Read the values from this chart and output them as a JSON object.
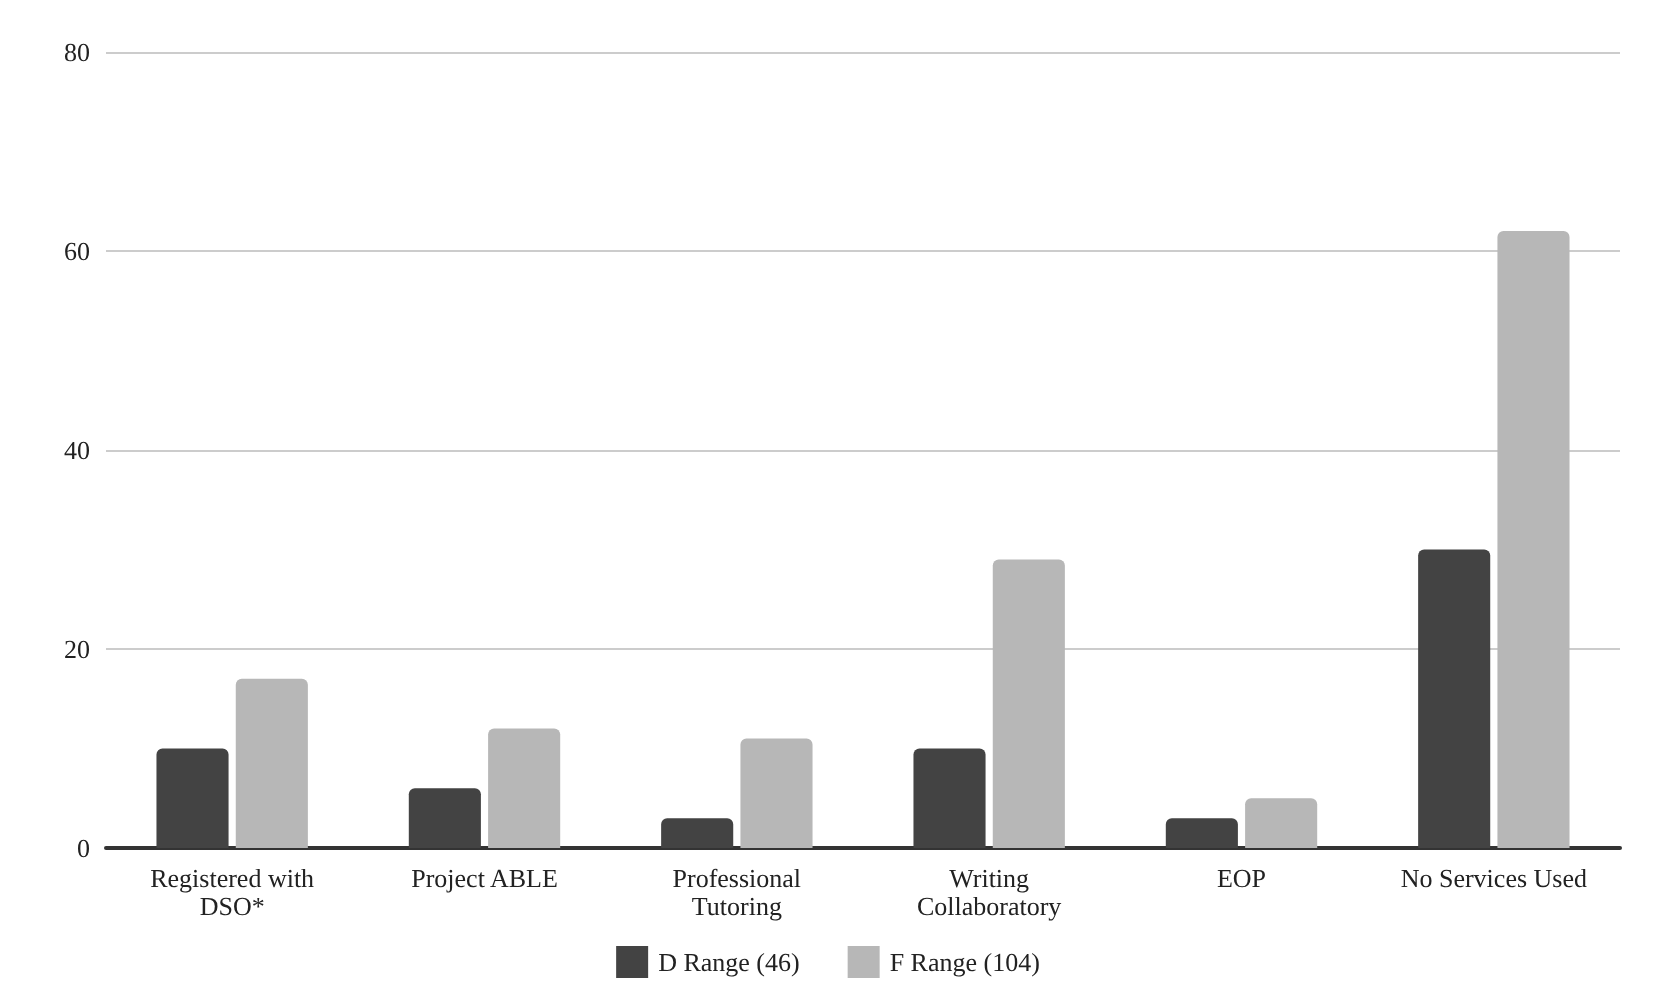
{
  "chart_data": {
    "type": "bar",
    "categories": [
      "Registered with\nDSO*",
      "Project ABLE",
      "Professional\nTutoring",
      "Writing\nCollaboratory",
      "EOP",
      "No Services Used"
    ],
    "series": [
      {
        "name": "D Range (46)",
        "color": "#434343",
        "values": [
          10,
          6,
          3,
          10,
          3,
          30
        ]
      },
      {
        "name": "F Range (104)",
        "color": "#b7b7b7",
        "values": [
          17,
          12,
          11,
          29,
          5,
          62
        ]
      }
    ],
    "ylim": [
      0,
      80
    ],
    "yticks": [
      0,
      20,
      40,
      60,
      80
    ],
    "grid": "y",
    "legend": "bottom"
  }
}
